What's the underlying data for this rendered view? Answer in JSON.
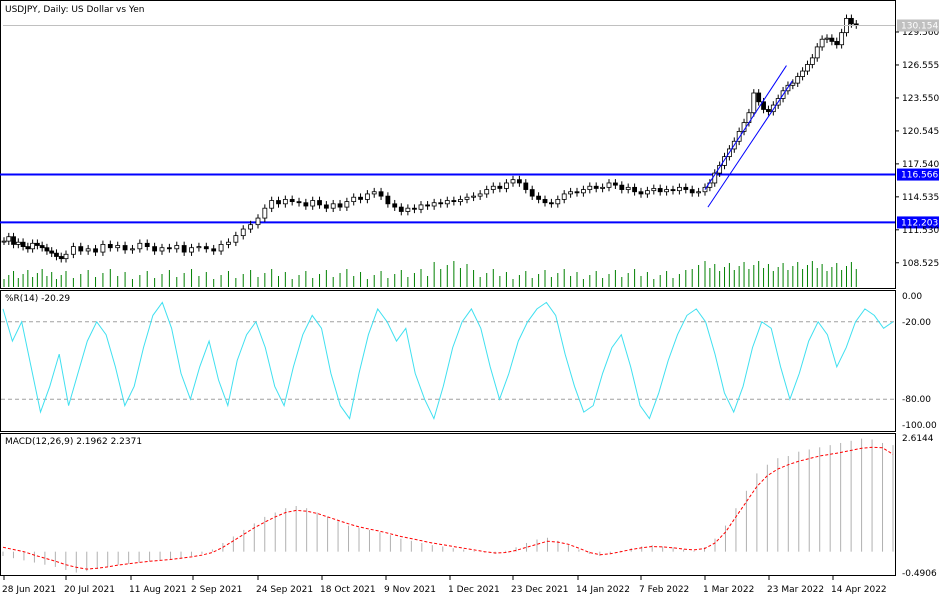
{
  "chart_data": [
    {
      "type": "candlestick",
      "title": "USDJPY, Daily:  US Dollar vs Yen",
      "price_ticks": [
        "129.560",
        "126.555",
        "123.550",
        "120.545",
        "117.540",
        "114.535",
        "111.530",
        "108.525"
      ],
      "ylim": [
        106.5,
        131.2
      ],
      "last_price": "130.154",
      "horizontal_levels": [
        {
          "value": 116.566,
          "label": "116.566",
          "color": "#0000ff"
        },
        {
          "value": 112.203,
          "label": "112.203",
          "color": "#0000ff"
        }
      ],
      "channel_lines": [
        {
          "x": [
            "1 Mar 2022",
            "29 Mar 2022"
          ],
          "y": [
            115.2,
            126.5
          ]
        },
        {
          "x": [
            "2 Mar 2022",
            "31 Mar 2022"
          ],
          "y": [
            113.6,
            125.1
          ]
        }
      ],
      "price_segments": [
        {
          "from": "28 Jun 2021",
          "to": "20 Jul 2021",
          "y": [
            110.5,
            110.9,
            110.2,
            110.4,
            110.0,
            109.8,
            110.3,
            110.1,
            109.9,
            109.6,
            109.4,
            109.1,
            108.9,
            109.3
          ]
        },
        {
          "from": "20 Jul 2021",
          "to": "24 Sep 2021",
          "y": [
            109.3,
            110.0,
            109.6,
            109.8,
            109.5,
            110.2,
            109.9,
            110.1,
            109.7,
            109.8,
            110.3,
            110.0,
            109.6,
            109.9,
            109.8,
            110.1,
            109.5,
            109.9,
            110.0,
            109.8,
            109.6,
            110.2,
            110.4,
            111.0,
            111.6,
            112.0,
            112.6
          ]
        },
        {
          "from": "24 Sep 2021",
          "to": "12 Nov 2021",
          "y": [
            112.6,
            113.5,
            114.2,
            113.9,
            114.3,
            114.1,
            114.0,
            113.7,
            114.2,
            113.8,
            113.5,
            113.9,
            113.6,
            114.1,
            114.5,
            114.3,
            114.8,
            115.0,
            114.6,
            113.9,
            113.6
          ]
        },
        {
          "from": "12 Nov 2021",
          "to": "23 Dec 2021",
          "y": [
            113.6,
            113.2,
            113.5,
            113.4,
            113.8,
            113.7,
            114.0,
            113.9,
            114.2,
            114.1,
            114.3,
            114.5,
            114.6,
            114.8,
            115.2,
            115.5,
            115.3,
            115.8,
            116.1
          ]
        },
        {
          "from": "23 Dec 2021",
          "to": "1 Mar 2022",
          "y": [
            116.1,
            115.8,
            115.2,
            114.6,
            114.3,
            114.0,
            113.9,
            114.3,
            114.8,
            115.0,
            114.9,
            115.2,
            115.5,
            115.3,
            115.4,
            115.8,
            115.6,
            115.2,
            115.4,
            115.0,
            114.8,
            115.1,
            115.3,
            115.0,
            115.2,
            115.1,
            115.4,
            115.2,
            114.9,
            115.0,
            115.4
          ]
        },
        {
          "from": "1 Mar 2022",
          "to": "22 Apr 2022",
          "y": [
            115.4,
            115.8,
            116.7,
            117.4,
            118.2,
            118.9,
            119.6,
            120.5,
            121.3,
            122.2,
            124.0,
            123.2,
            122.5,
            122.3,
            122.9,
            123.5,
            124.2,
            124.7,
            124.9,
            125.5,
            126.0,
            126.6,
            127.2,
            128.2,
            128.9,
            129.0,
            128.7,
            128.4,
            129.5,
            130.8,
            130.3,
            130.2
          ]
        }
      ],
      "volume_note": "tick volume bars",
      "x_tick_labels": [
        "28 Jun 2021",
        "20 Jul 2021",
        "11 Aug 2021",
        "2 Sep 2021",
        "24 Sep 2021",
        "18 Oct 2021",
        "9 Nov 2021",
        "1 Dec 2021",
        "23 Dec 2021",
        "14 Jan 2022",
        "7 Feb 2022",
        "1 Mar 2022",
        "23 Mar 2022",
        "14 Apr 2022"
      ]
    },
    {
      "type": "line",
      "title": "%R(14) -20.29",
      "y_ticks": [
        "0.00",
        "-20.00",
        "-80.00",
        "-100.00"
      ],
      "ylim": [
        -100,
        0
      ],
      "levels": [
        -20,
        -80
      ],
      "series": [
        {
          "color": "#40e0f0",
          "values": [
            -10,
            -35,
            -20,
            -55,
            -90,
            -70,
            -45,
            -85,
            -60,
            -35,
            -20,
            -30,
            -55,
            -85,
            -70,
            -40,
            -15,
            -5,
            -25,
            -60,
            -80,
            -55,
            -35,
            -65,
            -85,
            -50,
            -30,
            -20,
            -40,
            -70,
            -85,
            -55,
            -30,
            -15,
            -25,
            -60,
            -85,
            -95,
            -60,
            -30,
            -10,
            -20,
            -35,
            -25,
            -60,
            -80,
            -95,
            -70,
            -40,
            -20,
            -10,
            -25,
            -55,
            -80,
            -60,
            -35,
            -20,
            -10,
            -5,
            -15,
            -45,
            -70,
            -90,
            -85,
            -60,
            -40,
            -30,
            -55,
            -85,
            -95,
            -75,
            -50,
            -30,
            -15,
            -10,
            -20,
            -45,
            -75,
            -90,
            -70,
            -40,
            -20,
            -25,
            -55,
            -80,
            -60,
            -35,
            -20,
            -30,
            -55,
            -40,
            -20,
            -10,
            -15,
            -25,
            -20
          ]
        }
      ]
    },
    {
      "type": "bar+line",
      "title": "MACD(12,26,9) 2.1962 2.2371",
      "y_ticks": [
        "2.6144",
        "-0.4906"
      ],
      "ylim": [
        -0.4906,
        2.6144
      ],
      "histogram": [
        -0.1,
        -0.15,
        -0.2,
        -0.25,
        -0.3,
        -0.35,
        -0.42,
        -0.48,
        -0.45,
        -0.4,
        -0.35,
        -0.3,
        -0.28,
        -0.25,
        -0.22,
        -0.2,
        -0.18,
        -0.15,
        -0.1,
        -0.05,
        0.05,
        0.2,
        0.35,
        0.5,
        0.65,
        0.8,
        0.9,
        1.0,
        1.05,
        1.0,
        0.9,
        0.8,
        0.7,
        0.6,
        0.55,
        0.5,
        0.45,
        0.38,
        0.3,
        0.25,
        0.2,
        0.15,
        0.12,
        0.08,
        0.05,
        0.02,
        -0.02,
        -0.05,
        0.02,
        0.1,
        0.2,
        0.28,
        0.32,
        0.25,
        0.15,
        0.05,
        -0.05,
        -0.1,
        -0.05,
        0.02,
        0.08,
        0.12,
        0.15,
        0.12,
        0.1,
        0.05,
        0.02,
        0.1,
        0.3,
        0.6,
        1.0,
        1.4,
        1.8,
        2.0,
        2.15,
        2.2,
        2.3,
        2.35,
        2.4,
        2.45,
        2.5,
        2.55,
        2.6,
        2.58,
        2.5,
        2.45
      ],
      "signal": [
        0.1,
        0.05,
        0.0,
        -0.08,
        -0.15,
        -0.22,
        -0.3,
        -0.36,
        -0.4,
        -0.38,
        -0.35,
        -0.31,
        -0.28,
        -0.25,
        -0.22,
        -0.2,
        -0.18,
        -0.15,
        -0.12,
        -0.08,
        -0.02,
        0.1,
        0.25,
        0.4,
        0.55,
        0.68,
        0.8,
        0.9,
        0.95,
        0.93,
        0.88,
        0.8,
        0.72,
        0.64,
        0.57,
        0.52,
        0.47,
        0.41,
        0.35,
        0.3,
        0.25,
        0.2,
        0.16,
        0.12,
        0.08,
        0.04,
        0.0,
        -0.03,
        -0.02,
        0.03,
        0.1,
        0.17,
        0.24,
        0.22,
        0.17,
        0.08,
        -0.02,
        -0.07,
        -0.05,
        0.0,
        0.05,
        0.09,
        0.12,
        0.11,
        0.09,
        0.06,
        0.04,
        0.07,
        0.2,
        0.45,
        0.8,
        1.15,
        1.5,
        1.75,
        1.9,
        2.0,
        2.08,
        2.14,
        2.2,
        2.24,
        2.28,
        2.33,
        2.38,
        2.4,
        2.39,
        2.24
      ]
    }
  ]
}
